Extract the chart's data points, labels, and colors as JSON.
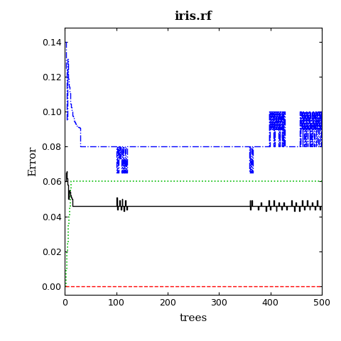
{
  "title": "iris.rf",
  "xlabel": "trees",
  "ylabel": "Error",
  "xlim": [
    0,
    500
  ],
  "ylim": [
    -0.005,
    0.148
  ],
  "yticks": [
    0.0,
    0.02,
    0.04,
    0.06,
    0.08,
    0.1,
    0.12,
    0.14
  ],
  "xticks": [
    0,
    100,
    200,
    300,
    400,
    500
  ],
  "figsize": [
    4.8,
    4.8
  ],
  "dpi": 100,
  "background": "#ffffff",
  "oob_color": "#000000",
  "class1_color": "#ff0000",
  "class2_color": "#00bb00",
  "class3_color": "#0000ff",
  "oob_linestyle": "-",
  "class1_linestyle": "--",
  "class2_linestyle": ":",
  "class3_linestyle": "-.",
  "oob_linewidth": 1.0,
  "class1_linewidth": 1.0,
  "class2_linewidth": 1.2,
  "class3_linewidth": 1.0,
  "seed": 42
}
